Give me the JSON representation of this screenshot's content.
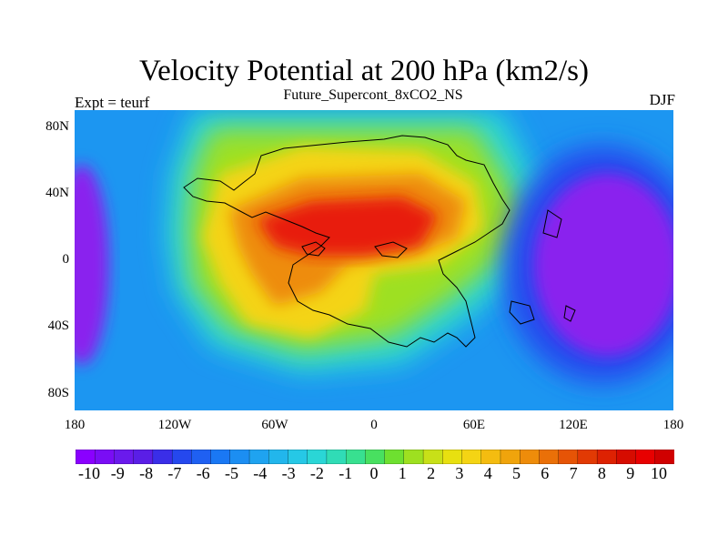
{
  "header": {
    "title": "Velocity Potential at 200 hPa (km2/s)",
    "subtitle": "Future_Supercont_8xCO2_NS",
    "left_label": "Expt = teurf",
    "right_label": "DJF"
  },
  "axes": {
    "y_ticks": [
      "80N",
      "40N",
      "0",
      "40S",
      "80S"
    ],
    "x_ticks": [
      "180",
      "120W",
      "60W",
      "0",
      "60E",
      "120E",
      "180"
    ]
  },
  "colorbar": {
    "labels": [
      "-10",
      "-9",
      "-8",
      "-7",
      "-6",
      "-5",
      "-4",
      "-3",
      "-2",
      "-1",
      "0",
      "1",
      "2",
      "3",
      "4",
      "5",
      "6",
      "7",
      "8",
      "9",
      "10"
    ],
    "colors": [
      "#8a00ff",
      "#7a0df5",
      "#6a1aec",
      "#5a1ee6",
      "#3a2ee8",
      "#2548ee",
      "#1f60f2",
      "#1a78f4",
      "#1c8ef2",
      "#1fa3f0",
      "#22b6ec",
      "#26c8e6",
      "#2ad6d6",
      "#30dcb6",
      "#38e090",
      "#48e060",
      "#6ee030",
      "#9ee020",
      "#c8e018",
      "#e8e010",
      "#f4d414",
      "#f4bc10",
      "#f0a40c",
      "#ee8c0a",
      "#ea7008",
      "#e65406",
      "#e23a04",
      "#dd2202",
      "#d60c00",
      "#e80000",
      "#d00000"
    ]
  },
  "map_colors": {
    "background": "#1c96f1",
    "high_outer": "#2ad6d6",
    "high_mid": "#9ee020",
    "high_inner": "#f4d414",
    "high_core": "#ee8c0a",
    "high_max": "#e81a08",
    "low_outer": "#2548ee",
    "low_inner": "#8a22ee",
    "coast": "#000000"
  }
}
